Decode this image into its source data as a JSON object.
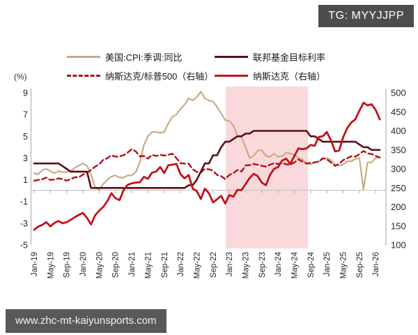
{
  "badge": {
    "text": "TG: MYYJJPP"
  },
  "watermark": {
    "text": "www.zhc-mt-kaiyunsports.com"
  },
  "chart_data": {
    "type": "line",
    "frequency": "monthly",
    "x_start": "Jan-19",
    "x_end": "Feb-26",
    "x_tick_labels": [
      "Jan-19",
      "May-19",
      "Sep-19",
      "Jan-20",
      "May-20",
      "Sep-20",
      "Jan-21",
      "May-21",
      "Sep-21",
      "Jan-22",
      "May-22",
      "Sep-22",
      "Jan-23",
      "May-23",
      "Sep-23",
      "Jan-24",
      "May-24",
      "Sep-24",
      "Jan-25",
      "May-25",
      "Sep-25",
      "Jan-26"
    ],
    "y_left_axis_title": "(%)",
    "y_left_ticks": [
      9,
      7,
      5,
      3,
      1,
      -1,
      -3,
      -5
    ],
    "y_left_range": [
      -5,
      9
    ],
    "y_right_ticks": [
      500,
      450,
      400,
      350,
      300,
      250,
      200,
      150,
      100
    ],
    "y_right_range": [
      100,
      500
    ],
    "grid": "zero-line-only",
    "legend_position": "top",
    "shaded_region": {
      "from": "Jan-23",
      "to": "Aug-24",
      "color": "#FAD9DC"
    },
    "series": [
      {
        "name": "美国:CPI:季调:同比",
        "axis": "left",
        "style": "solid",
        "color": "#C8AB84",
        "values": [
          1.6,
          1.5,
          1.9,
          2.0,
          1.8,
          1.6,
          1.8,
          1.7,
          1.7,
          1.8,
          2.1,
          2.3,
          2.5,
          2.3,
          1.5,
          0.3,
          0.1,
          0.6,
          1.0,
          1.3,
          1.4,
          1.2,
          1.2,
          1.4,
          1.4,
          1.7,
          2.6,
          4.2,
          5.0,
          5.4,
          5.4,
          5.3,
          5.4,
          6.2,
          6.8,
          7.0,
          7.5,
          7.9,
          8.5,
          8.3,
          8.6,
          9.1,
          8.5,
          8.3,
          8.2,
          7.7,
          7.1,
          6.5,
          6.4,
          6.0,
          5.0,
          4.9,
          4.0,
          3.0,
          3.2,
          3.7,
          3.7,
          3.2,
          3.1,
          3.4,
          3.1,
          3.2,
          3.5,
          3.4,
          3.3,
          3.0,
          2.9,
          2.5,
          2.4,
          2.6,
          2.7,
          2.9,
          3.0,
          2.8,
          2.4,
          2.3,
          2.4,
          2.7,
          2.7,
          2.9,
          3.0,
          0.1,
          2.6,
          2.6,
          3.0,
          3.1
        ]
      },
      {
        "name": "纳斯达克/标普500（右轴）",
        "axis": "right",
        "style": "dashed",
        "color": "#AE1219",
        "values": [
          269,
          271,
          273,
          277,
          271,
          272,
          275,
          273,
          269,
          273,
          278,
          278,
          285,
          290,
          297,
          306,
          312,
          324,
          328,
          336,
          332,
          333,
          336,
          343,
          352,
          346,
          333,
          334,
          327,
          337,
          334,
          337,
          335,
          337,
          340,
          328,
          315,
          314,
          314,
          299,
          292,
          291,
          300,
          299,
          295,
          284,
          281,
          273,
          284,
          289,
          297,
          293,
          309,
          310,
          313,
          311,
          308,
          306,
          311,
          315,
          313,
          316,
          312,
          311,
          317,
          325,
          319,
          314,
          316,
          317,
          319,
          328,
          325,
          317,
          308,
          313,
          323,
          328,
          333,
          332,
          339,
          347,
          341,
          339,
          334,
          330
        ]
      },
      {
        "name": "联邦基金目标利率",
        "axis": "left",
        "style": "solid",
        "color": "#5C0E13",
        "values": [
          2.5,
          2.5,
          2.5,
          2.5,
          2.5,
          2.5,
          2.5,
          2.25,
          2.0,
          1.75,
          1.75,
          1.75,
          1.75,
          1.75,
          0.25,
          0.25,
          0.25,
          0.25,
          0.25,
          0.25,
          0.25,
          0.25,
          0.25,
          0.25,
          0.25,
          0.25,
          0.25,
          0.25,
          0.25,
          0.25,
          0.25,
          0.25,
          0.25,
          0.25,
          0.25,
          0.25,
          0.25,
          0.25,
          0.5,
          0.5,
          1.0,
          1.75,
          2.5,
          2.5,
          3.25,
          3.25,
          4.0,
          4.5,
          4.5,
          4.75,
          5.0,
          5.0,
          5.25,
          5.25,
          5.5,
          5.5,
          5.5,
          5.5,
          5.5,
          5.5,
          5.5,
          5.5,
          5.5,
          5.5,
          5.5,
          5.5,
          5.5,
          5.5,
          5.0,
          5.0,
          4.75,
          4.5,
          4.5,
          4.5,
          4.5,
          4.5,
          4.5,
          4.5,
          4.5,
          4.5,
          4.25,
          4.0,
          4.0,
          3.75,
          3.75,
          3.75
        ]
      },
      {
        "name": "纳斯达克（右轴）",
        "axis": "right",
        "style": "solid",
        "color": "#C2121A",
        "values": [
          140,
          148,
          153,
          160,
          149,
          158,
          163,
          157,
          160,
          166,
          173,
          179,
          184,
          171,
          154,
          178,
          190,
          200,
          215,
          236,
          223,
          218,
          244,
          258,
          262,
          264,
          265,
          279,
          274,
          290,
          293,
          305,
          289,
          310,
          311,
          313,
          286,
          275,
          284,
          248,
          242,
          221,
          248,
          236,
          212,
          220,
          229,
          209,
          231,
          227,
          245,
          244,
          260,
          276,
          287,
          281,
          264,
          257,
          284,
          300,
          305,
          322,
          327,
          313,
          334,
          354,
          352,
          354,
          363,
          361,
          384,
          386,
          397,
          375,
          346,
          348,
          383,
          407,
          422,
          430,
          453,
          474,
          467,
          470,
          455,
          430
        ]
      }
    ]
  }
}
